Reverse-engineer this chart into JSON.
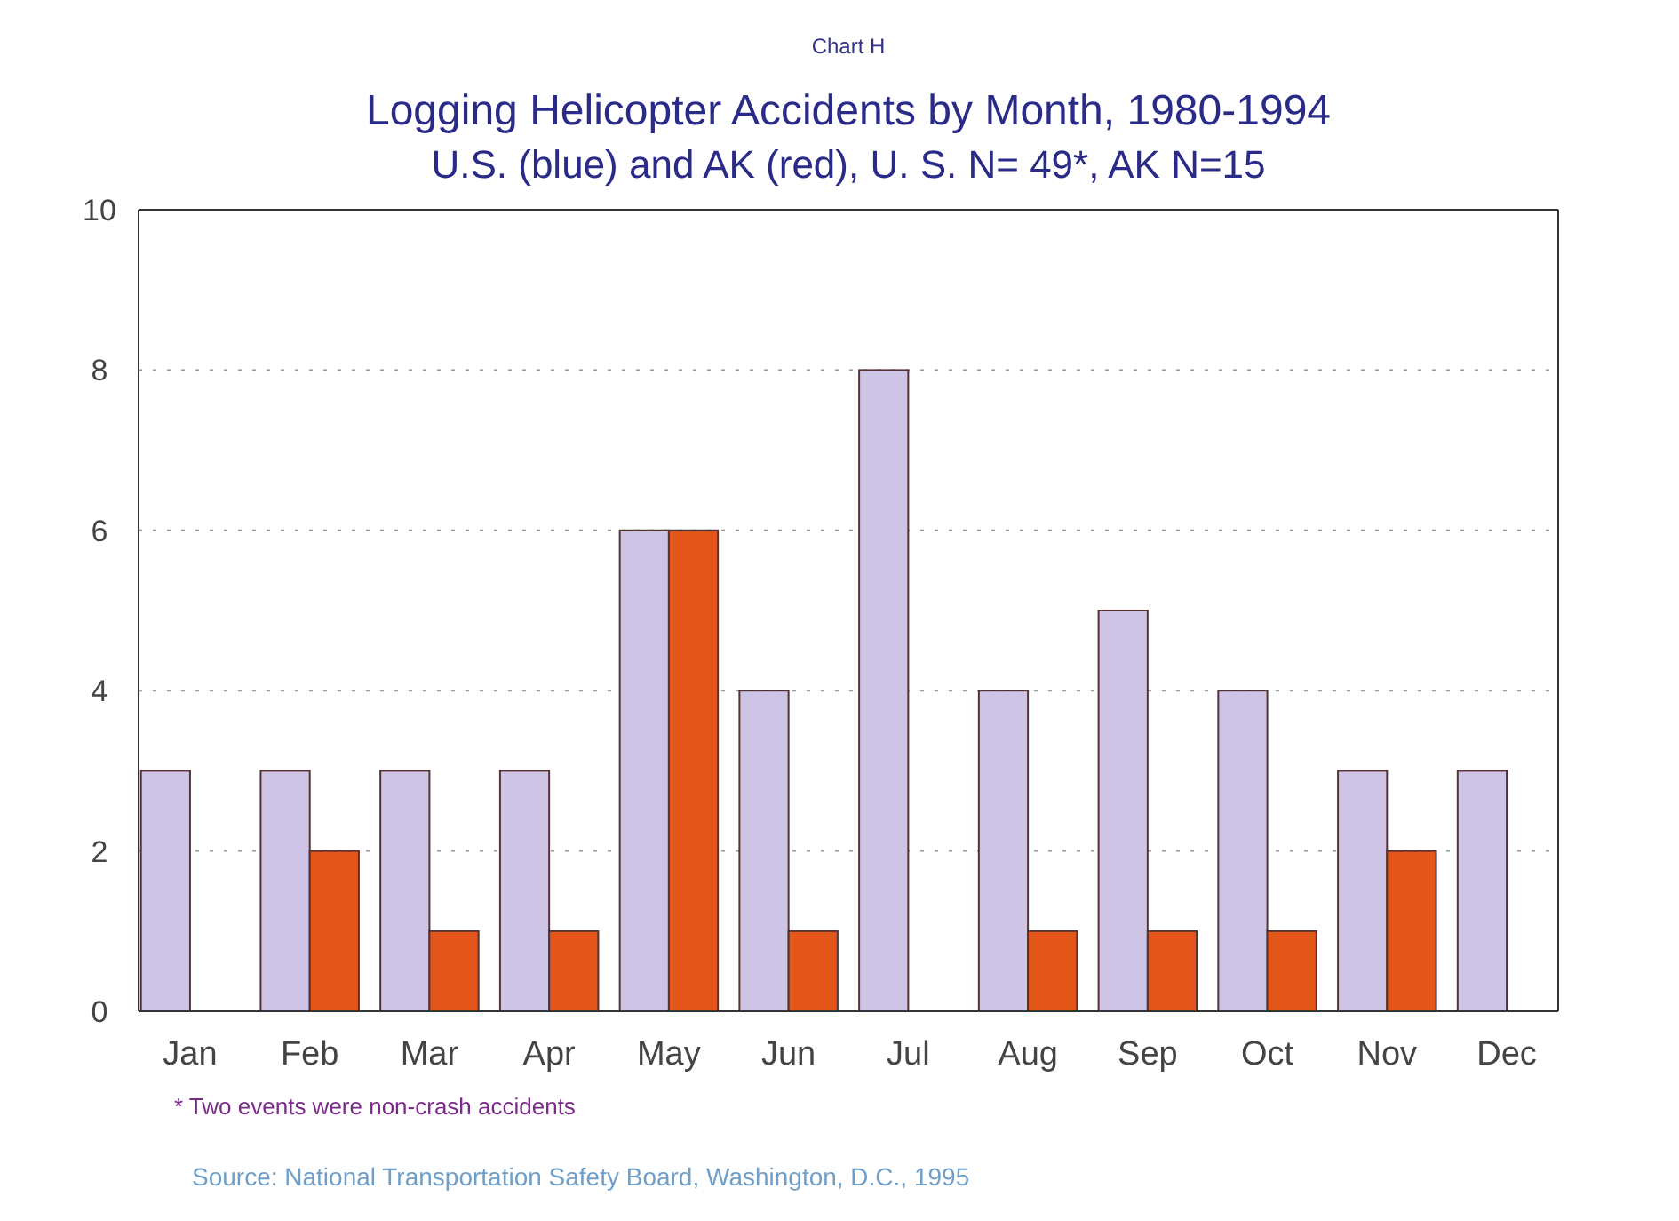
{
  "chart_data": {
    "type": "bar",
    "title": "Logging Helicopter Accidents by Month, 1980-1994",
    "subtitle": "U.S. (blue) and AK (red), U. S.  N= 49*, AK N=15",
    "annotations": [
      "Chart H",
      "* Two events were non-crash accidents",
      "Source: National Transportation Safety Board, Washington, D.C., 1995"
    ],
    "categories": [
      "Jan",
      "Feb",
      "Mar",
      "Apr",
      "May",
      "Jun",
      "Jul",
      "Aug",
      "Sep",
      "Oct",
      "Nov",
      "Dec"
    ],
    "series": [
      {
        "color": "#cdc4e6",
        "values": [
          3,
          3,
          3,
          3,
          6,
          4,
          8,
          4,
          5,
          4,
          3,
          3
        ]
      },
      {
        "color": "#e2561a",
        "values": [
          null,
          2,
          1,
          1,
          6,
          1,
          null,
          1,
          1,
          1,
          2,
          null
        ]
      }
    ],
    "ylim": [
      0,
      10
    ],
    "yticks": [
      0,
      2,
      4,
      6,
      8,
      10
    ],
    "grid": "y"
  }
}
